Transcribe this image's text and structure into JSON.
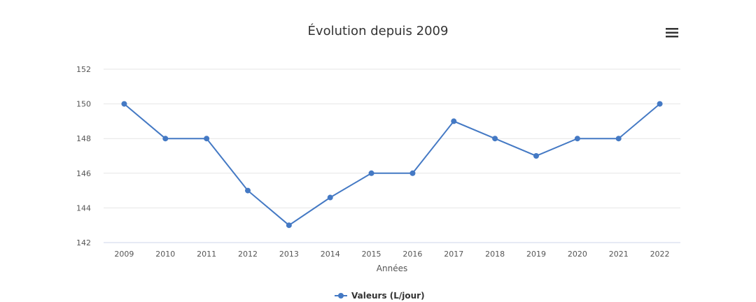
{
  "chart_data": {
    "type": "line",
    "title": "Évolution depuis 2009",
    "xlabel": "Années",
    "ylabel": "",
    "categories": [
      "2009",
      "2010",
      "2011",
      "2012",
      "2013",
      "2014",
      "2015",
      "2016",
      "2017",
      "2018",
      "2019",
      "2020",
      "2021",
      "2022"
    ],
    "series": [
      {
        "name": "Valeurs (L/jour)",
        "values": [
          150,
          148,
          148,
          145,
          143,
          144.6,
          146,
          146,
          149,
          148,
          147,
          148,
          148,
          150
        ]
      }
    ],
    "ylim": [
      142,
      152
    ],
    "yticks": [
      142,
      144,
      146,
      148,
      150,
      152
    ],
    "grid": true,
    "legend": "bottom-center",
    "colors": {
      "series": "#4479c4",
      "grid": "#e6e6e6",
      "axis": "#ccd6eb"
    }
  },
  "menu": {
    "icon": "hamburger-menu-icon"
  }
}
